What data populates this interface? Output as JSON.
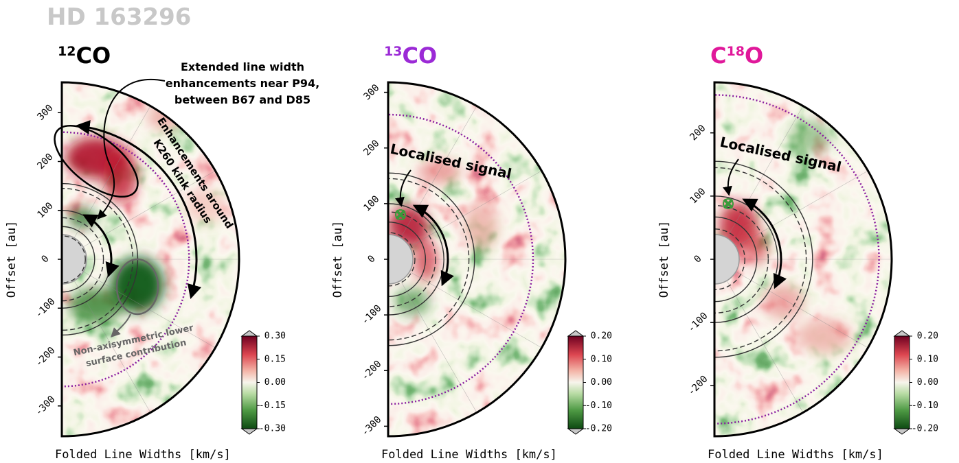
{
  "title": "HD 163296",
  "chart_data": [
    {
      "type": "polar-map",
      "title": [
        {
          "text": "12",
          "sup": true
        },
        {
          "text": "CO"
        }
      ],
      "title_color": "#000000",
      "ylabel": "Offset [au]",
      "xlabel": "Folded Line Widths [km/s]",
      "ylim": [
        -362,
        362
      ],
      "yticks": [
        -300,
        -200,
        -100,
        0,
        100,
        200,
        300
      ],
      "rings": [
        67,
        100,
        155
      ],
      "gaps": [
        48,
        85,
        145
      ],
      "kink_radius": 260,
      "clim": [
        -0.3,
        0.3
      ],
      "cticks": [
        {
          "value": 0.3,
          "label": "0.30"
        },
        0.15,
        {
          "value": 0,
          "label": "0.00"
        },
        -0.15,
        {
          "value": -0.3,
          "label": "-0.30"
        }
      ],
      "annotations": [
        {
          "lines": [
            "Extended line width",
            "enhancements near P94,",
            "between B67 and D85"
          ],
          "color": "#000000"
        },
        {
          "lines": [
            "Enhancements around",
            "K260 kink radius"
          ],
          "color": "#000000"
        },
        {
          "lines": [
            "Non-axisymmetric lower",
            "surface contribution"
          ],
          "color": "#666666"
        }
      ]
    },
    {
      "type": "polar-map",
      "title": [
        {
          "text": "13",
          "sup": true
        },
        {
          "text": "CO"
        }
      ],
      "title_color": "#9b2ad6",
      "ylabel": "Offset [au]",
      "xlabel": "Folded Line Widths [km/s]",
      "ylim": [
        -318,
        318
      ],
      "yticks": [
        -300,
        -200,
        -100,
        0,
        100,
        200,
        300
      ],
      "rings": [
        67,
        100,
        155
      ],
      "gaps": [
        48,
        85,
        145
      ],
      "kink_radius": 260,
      "clim": [
        -0.2,
        0.2
      ],
      "cticks": [
        {
          "value": 0.2,
          "label": "0.20"
        },
        {
          "value": 0.1,
          "label": "0.10"
        },
        {
          "value": 0,
          "label": "0.00"
        },
        {
          "value": -0.1,
          "label": "-0.10"
        },
        {
          "value": -0.2,
          "label": "-0.20"
        }
      ],
      "annotations": [
        {
          "lines": [
            "Localised signal"
          ],
          "color": "#000000"
        }
      ]
    },
    {
      "type": "polar-map",
      "title": [
        {
          "text": "C"
        },
        {
          "text": "18",
          "sup": true
        },
        {
          "text": "O"
        }
      ],
      "title_color": "#e0189a",
      "ylabel": "Offset [au]",
      "xlabel": "Folded Line Widths [km/s]",
      "ylim": [
        -280,
        280
      ],
      "yticks": [
        -200,
        -100,
        0,
        100,
        200
      ],
      "rings": [
        67,
        100,
        155
      ],
      "gaps": [
        48,
        85,
        145
      ],
      "kink_radius": 260,
      "clim": [
        -0.2,
        0.2
      ],
      "cticks": [
        {
          "value": 0.2,
          "label": "0.20"
        },
        {
          "value": 0.1,
          "label": "0.10"
        },
        {
          "value": 0,
          "label": "0.00"
        },
        {
          "value": -0.1,
          "label": "-0.10"
        },
        {
          "value": -0.2,
          "label": "-0.20"
        }
      ],
      "annotations": [
        {
          "lines": [
            "Localised signal"
          ],
          "color": "#000000"
        }
      ]
    }
  ]
}
